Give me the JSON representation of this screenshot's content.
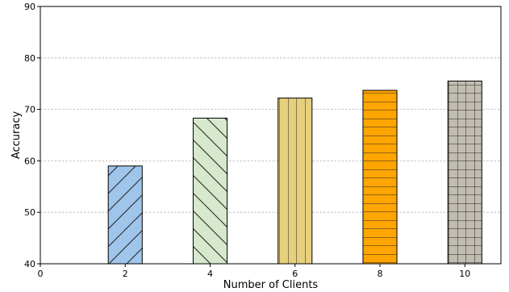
{
  "chart_data": {
    "type": "bar",
    "title": "",
    "xlabel": "Number of Clients",
    "ylabel": "Accuracy",
    "x": [
      2,
      4,
      6,
      8,
      10
    ],
    "values": [
      59.0,
      68.3,
      72.2,
      73.7,
      75.5
    ],
    "xlim": [
      0,
      10.85
    ],
    "ylim": [
      40,
      90
    ],
    "xticks": [
      0,
      2,
      4,
      6,
      8,
      10
    ],
    "yticks": [
      40,
      50,
      60,
      70,
      80,
      90
    ],
    "grid": "horizontal dashed",
    "bar_colors": [
      "#9fc5eb",
      "#d7e8cc",
      "#e6cf7d",
      "#ffa500",
      "#c2bdb1"
    ],
    "bar_hatches": [
      "forward-diagonal",
      "back-diagonal",
      "vertical",
      "horizontal",
      "grid"
    ]
  }
}
